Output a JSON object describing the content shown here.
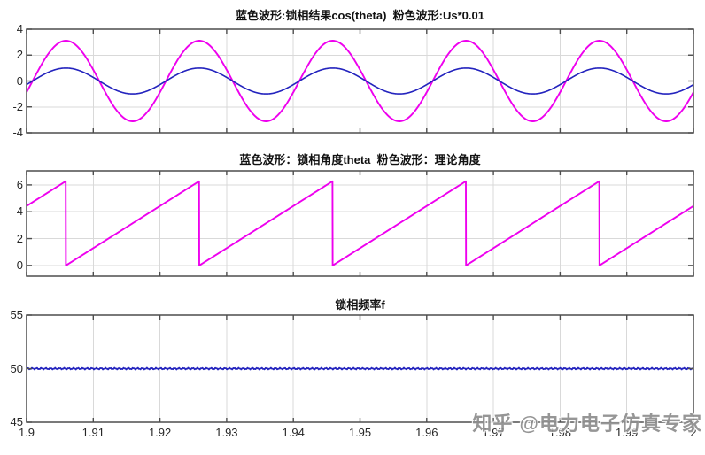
{
  "watermark": {
    "text": "知乎 @电力电子仿真专家"
  },
  "colors": {
    "blue": "#2424BE",
    "magenta": "#EE00EE",
    "grid": "#D9D9D9",
    "frame": "#4D4D4D",
    "tick_text": "#262626"
  },
  "x_axis": {
    "min": 1.9,
    "max": 2.0,
    "tick_values": [
      1.9,
      1.91,
      1.92,
      1.93,
      1.94,
      1.95,
      1.96,
      1.97,
      1.98,
      1.99,
      2.0
    ],
    "tick_labels": [
      "1.9",
      "1.91",
      "1.92",
      "1.93",
      "1.94",
      "1.95",
      "1.96",
      "1.97",
      "1.98",
      "1.99",
      "2"
    ]
  },
  "chart_data": [
    {
      "type": "line",
      "title": "蓝色波形:锁相结果cos(theta)  粉色波形:Us*0.01",
      "xlabel": "",
      "ylabel": "",
      "ylim": [
        -4,
        4
      ],
      "ytick_values": [
        4,
        2,
        0,
        -2,
        -4
      ],
      "ytick_labels": [
        "4",
        "2",
        "0",
        "-2",
        "-4"
      ],
      "grid": true,
      "series": [
        {
          "id": "us-scaled",
          "name": "粉色波形 Us*0.01",
          "color": "magenta",
          "kind": "cosine",
          "amplitude": 3.11,
          "frequency_hz": 50,
          "peak_time": 1.9059
        },
        {
          "id": "pll-cos-theta",
          "name": "蓝色波形 锁相结果cos(theta)",
          "color": "blue",
          "kind": "cosine",
          "amplitude": 1.0,
          "frequency_hz": 50,
          "peak_time": 1.9059
        }
      ]
    },
    {
      "type": "line",
      "title": "蓝色波形：锁相角度theta  粉色波形：理论角度",
      "xlabel": "",
      "ylabel": "",
      "ylim": [
        -0.8,
        7.05
      ],
      "ytick_values": [
        6,
        4,
        2,
        0
      ],
      "ytick_labels": [
        "6",
        "4",
        "2",
        "0"
      ],
      "grid": true,
      "series": [
        {
          "id": "theta-sawtooth",
          "name": "锁相角度theta / 理论角度",
          "color": "magenta",
          "kind": "sawtooth",
          "min": 0,
          "max": 6.2832,
          "frequency_hz": 50,
          "reset_time": 1.9059
        }
      ]
    },
    {
      "type": "line",
      "title": "锁相频率f",
      "xlabel": "",
      "ylabel": "",
      "ylim": [
        45,
        55
      ],
      "ytick_values": [
        55,
        50,
        45
      ],
      "ytick_labels": [
        "55",
        "50",
        "45"
      ],
      "grid": true,
      "series": [
        {
          "id": "pll-frequency",
          "name": "锁相频率f",
          "color": "blue",
          "kind": "constant",
          "value": 50,
          "noise": 0.09
        }
      ]
    }
  ]
}
